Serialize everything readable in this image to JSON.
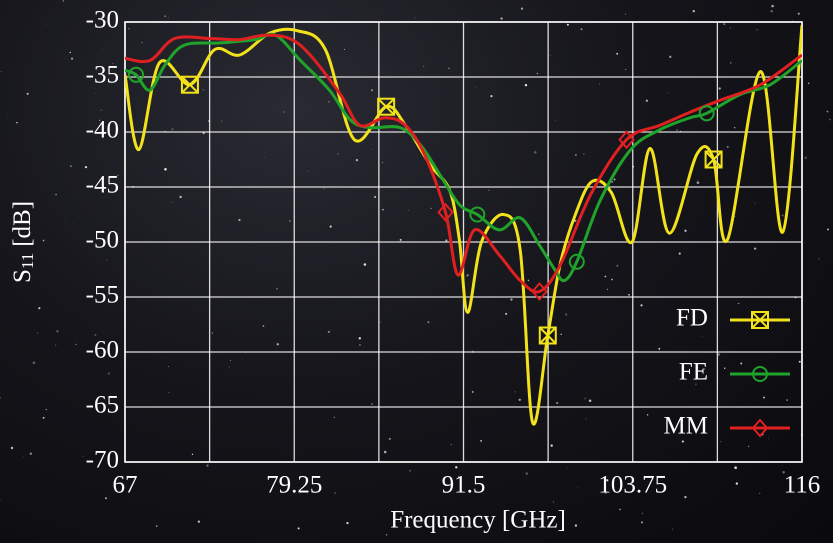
{
  "chart_data": {
    "type": "line",
    "xlabel": "Frequency [GHz]",
    "ylabel": {
      "symbol": "S",
      "subscript": "11",
      "unit": "[dB]"
    },
    "xlim": [
      67,
      116
    ],
    "xticks": [
      67,
      79.25,
      91.5,
      103.75,
      116
    ],
    "xgrid": [
      67,
      73.125,
      79.25,
      85.375,
      91.5,
      97.625,
      103.75,
      109.875,
      116
    ],
    "ylim": [
      -70,
      -30
    ],
    "yticks": [
      -30,
      -35,
      -40,
      -45,
      -50,
      -55,
      -60,
      -65,
      -70
    ],
    "grid": true,
    "legend": "lower right",
    "series": [
      {
        "name": "FD",
        "color": "#f2e21a",
        "marker": "square-x",
        "x": [
          67,
          68.0,
          69.5,
          71.7,
          73.5,
          75.3,
          77.5,
          79.5,
          81.5,
          83.6,
          85.9,
          87.3,
          89.1,
          90.5,
          91.2,
          91.8,
          92.8,
          94.4,
          95.6,
          96.5,
          97.6,
          98.5,
          99.6,
          100.8,
          102.2,
          103.7,
          105,
          106.4,
          108.4,
          109.6,
          110.6,
          113,
          114.6,
          116
        ],
        "values": [
          -34.8,
          -41.6,
          -33.7,
          -35.7,
          -32.5,
          -33,
          -31,
          -30.8,
          -32.5,
          -40.7,
          -37.7,
          -39.4,
          -43,
          -45.3,
          -49.8,
          -56.4,
          -50,
          -47.5,
          -50.7,
          -66.4,
          -58.5,
          -52,
          -47.5,
          -44.5,
          -45.5,
          -50,
          -41.5,
          -49.2,
          -42,
          -42.5,
          -49.8,
          -34.5,
          -49.1,
          -30.3
        ],
        "markers": [
          3,
          10,
          20,
          29
        ]
      },
      {
        "name": "FE",
        "color": "#1fa32a",
        "marker": "circle",
        "x": [
          67,
          67.8,
          68.8,
          69.9,
          71.3,
          73.9,
          76.4,
          77.9,
          79.7,
          81.8,
          83.3,
          84.7,
          86.9,
          88.4,
          89.8,
          91.2,
          92.5,
          94.1,
          95.6,
          97,
          98.1,
          98.8,
          99.7,
          101.4,
          103.6,
          105.7,
          107.9,
          109.1,
          111.5,
          113.7,
          116
        ],
        "values": [
          -34.4,
          -34.8,
          -36.2,
          -33.9,
          -32.1,
          -31.9,
          -31.6,
          -31.2,
          -33.5,
          -36.2,
          -38.9,
          -39.6,
          -39.6,
          -41.2,
          -43.9,
          -46.6,
          -47.5,
          -48.9,
          -47.8,
          -50.3,
          -52.5,
          -53.5,
          -51.8,
          -46.2,
          -41.6,
          -39.8,
          -38.7,
          -38.3,
          -36.6,
          -35.7,
          -33.5
        ],
        "markers": [
          1,
          16,
          22,
          27
        ]
      },
      {
        "name": "MM",
        "color": "#e02020",
        "marker": "diamond",
        "x": [
          67,
          68.8,
          70.6,
          73.2,
          75.3,
          77.1,
          78.9,
          80.4,
          82.6,
          84,
          85.8,
          87.3,
          88.7,
          90.2,
          91.1,
          92.3,
          94.1,
          95.6,
          97,
          98.5,
          100.7,
          103.3,
          105.7,
          107.9,
          110.1,
          113,
          116
        ],
        "values": [
          -33.3,
          -33.5,
          -31.5,
          -31.5,
          -31.6,
          -31.2,
          -31.5,
          -33,
          -36.6,
          -39.4,
          -38.7,
          -39.4,
          -42.1,
          -47.3,
          -53,
          -48.9,
          -51.2,
          -53.5,
          -54.5,
          -52.1,
          -45.7,
          -40.7,
          -39.4,
          -38.2,
          -37.1,
          -35.7,
          -33
        ],
        "markers": [
          13,
          18,
          21
        ]
      }
    ]
  }
}
